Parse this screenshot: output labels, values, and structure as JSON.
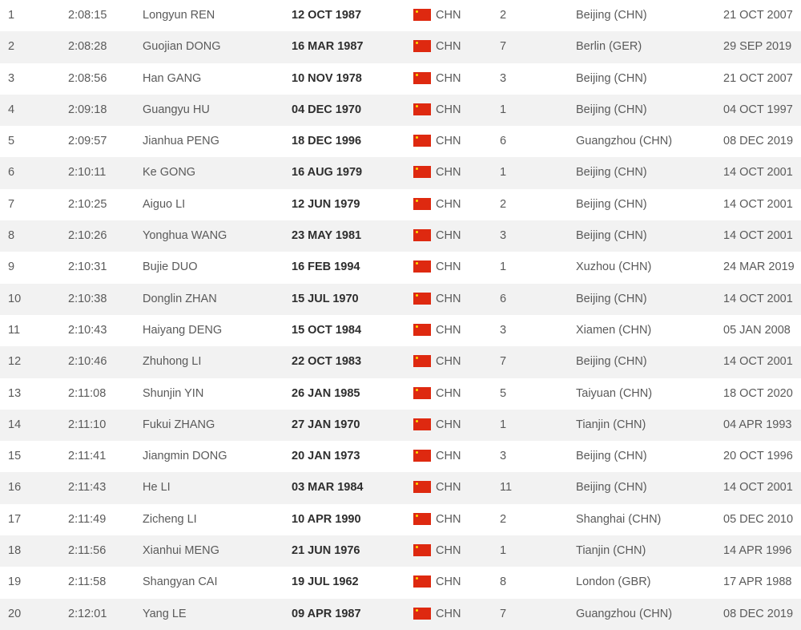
{
  "colors": {
    "flag": "#de2910",
    "row_alt": "#f2f2f2"
  },
  "rows": [
    {
      "rank": "1",
      "time": "2:08:15",
      "name": "Longyun REN",
      "dob": "12 OCT 1987",
      "nat": "CHN",
      "place": "2",
      "venue": "Beijing (CHN)",
      "date": "21 OCT 2007"
    },
    {
      "rank": "2",
      "time": "2:08:28",
      "name": "Guojian DONG",
      "dob": "16 MAR 1987",
      "nat": "CHN",
      "place": "7",
      "venue": "Berlin (GER)",
      "date": "29 SEP 2019"
    },
    {
      "rank": "3",
      "time": "2:08:56",
      "name": "Han GANG",
      "dob": "10 NOV 1978",
      "nat": "CHN",
      "place": "3",
      "venue": "Beijing (CHN)",
      "date": "21 OCT 2007"
    },
    {
      "rank": "4",
      "time": "2:09:18",
      "name": "Guangyu HU",
      "dob": "04 DEC 1970",
      "nat": "CHN",
      "place": "1",
      "venue": "Beijing (CHN)",
      "date": "04 OCT 1997"
    },
    {
      "rank": "5",
      "time": "2:09:57",
      "name": "Jianhua PENG",
      "dob": "18 DEC 1996",
      "nat": "CHN",
      "place": "6",
      "venue": "Guangzhou (CHN)",
      "date": "08 DEC 2019"
    },
    {
      "rank": "6",
      "time": "2:10:11",
      "name": "Ke GONG",
      "dob": "16 AUG 1979",
      "nat": "CHN",
      "place": "1",
      "venue": "Beijing (CHN)",
      "date": "14 OCT 2001"
    },
    {
      "rank": "7",
      "time": "2:10:25",
      "name": "Aiguo LI",
      "dob": "12 JUN 1979",
      "nat": "CHN",
      "place": "2",
      "venue": "Beijing (CHN)",
      "date": "14 OCT 2001"
    },
    {
      "rank": "8",
      "time": "2:10:26",
      "name": "Yonghua WANG",
      "dob": "23 MAY 1981",
      "nat": "CHN",
      "place": "3",
      "venue": "Beijing (CHN)",
      "date": "14 OCT 2001"
    },
    {
      "rank": "9",
      "time": "2:10:31",
      "name": "Bujie DUO",
      "dob": "16 FEB 1994",
      "nat": "CHN",
      "place": "1",
      "venue": "Xuzhou (CHN)",
      "date": "24 MAR 2019"
    },
    {
      "rank": "10",
      "time": "2:10:38",
      "name": "Donglin ZHAN",
      "dob": "15 JUL 1970",
      "nat": "CHN",
      "place": "6",
      "venue": "Beijing (CHN)",
      "date": "14 OCT 2001"
    },
    {
      "rank": "11",
      "time": "2:10:43",
      "name": "Haiyang DENG",
      "dob": "15 OCT 1984",
      "nat": "CHN",
      "place": "3",
      "venue": "Xiamen (CHN)",
      "date": "05 JAN 2008"
    },
    {
      "rank": "12",
      "time": "2:10:46",
      "name": "Zhuhong LI",
      "dob": "22 OCT 1983",
      "nat": "CHN",
      "place": "7",
      "venue": "Beijing (CHN)",
      "date": "14 OCT 2001"
    },
    {
      "rank": "13",
      "time": "2:11:08",
      "name": "Shunjin YIN",
      "dob": "26 JAN 1985",
      "nat": "CHN",
      "place": "5",
      "venue": "Taiyuan (CHN)",
      "date": "18 OCT 2020"
    },
    {
      "rank": "14",
      "time": "2:11:10",
      "name": "Fukui ZHANG",
      "dob": "27 JAN 1970",
      "nat": "CHN",
      "place": "1",
      "venue": "Tianjin (CHN)",
      "date": "04 APR 1993"
    },
    {
      "rank": "15",
      "time": "2:11:41",
      "name": "Jiangmin DONG",
      "dob": "20 JAN 1973",
      "nat": "CHN",
      "place": "3",
      "venue": "Beijing (CHN)",
      "date": "20 OCT 1996"
    },
    {
      "rank": "16",
      "time": "2:11:43",
      "name": "He LI",
      "dob": "03 MAR 1984",
      "nat": "CHN",
      "place": "11",
      "venue": "Beijing (CHN)",
      "date": "14 OCT 2001"
    },
    {
      "rank": "17",
      "time": "2:11:49",
      "name": "Zicheng LI",
      "dob": "10 APR 1990",
      "nat": "CHN",
      "place": "2",
      "venue": "Shanghai (CHN)",
      "date": "05 DEC 2010"
    },
    {
      "rank": "18",
      "time": "2:11:56",
      "name": "Xianhui MENG",
      "dob": "21 JUN 1976",
      "nat": "CHN",
      "place": "1",
      "venue": "Tianjin (CHN)",
      "date": "14 APR 1996"
    },
    {
      "rank": "19",
      "time": "2:11:58",
      "name": "Shangyan CAI",
      "dob": "19 JUL 1962",
      "nat": "CHN",
      "place": "8",
      "venue": "London (GBR)",
      "date": "17 APR 1988"
    },
    {
      "rank": "20",
      "time": "2:12:01",
      "name": "Yang LE",
      "dob": "09 APR 1987",
      "nat": "CHN",
      "place": "7",
      "venue": "Guangzhou (CHN)",
      "date": "08 DEC 2019"
    }
  ]
}
